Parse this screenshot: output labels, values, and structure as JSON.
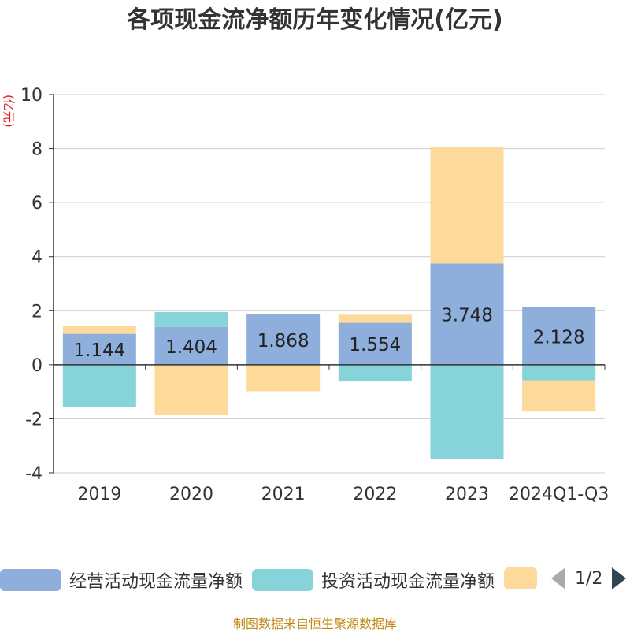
{
  "title": "各项现金流净额历年变化情况(亿元)",
  "unit_label": "(亿元)",
  "source": "制图数据来自恒生聚源数据库",
  "legend": {
    "items": [
      {
        "label": "经营活动现金流量净额",
        "color": "#8eaedb"
      },
      {
        "label": "投资活动现金流量净额",
        "color": "#86d4d9"
      },
      {
        "label": "",
        "color": "#fdd99a"
      }
    ],
    "page": "1/2"
  },
  "chart_data": {
    "type": "bar",
    "stacked": true,
    "categories": [
      "2019",
      "2020",
      "2021",
      "2022",
      "2023",
      "2024Q1-Q3"
    ],
    "series": [
      {
        "name": "经营活动现金流量净额",
        "color": "#8eaedb",
        "values": [
          1.144,
          1.404,
          1.868,
          1.554,
          3.748,
          2.128
        ]
      },
      {
        "name": "投资活动现金流量净额",
        "color": "#86d4d9",
        "values": [
          -1.55,
          0.55,
          0.0,
          -0.62,
          -3.5,
          -0.58
        ]
      },
      {
        "name": "",
        "color": "#fdd99a",
        "values": [
          0.28,
          -1.85,
          -0.98,
          0.3,
          4.3,
          -1.15
        ]
      }
    ],
    "data_labels": [
      "1.144",
      "1.404",
      "1.868",
      "1.554",
      "3.748",
      "2.128"
    ],
    "yticks": [
      "-4",
      "-2",
      "0",
      "2",
      "4",
      "6",
      "8",
      "10"
    ],
    "ylim": [
      -4,
      10
    ],
    "grid": true
  }
}
